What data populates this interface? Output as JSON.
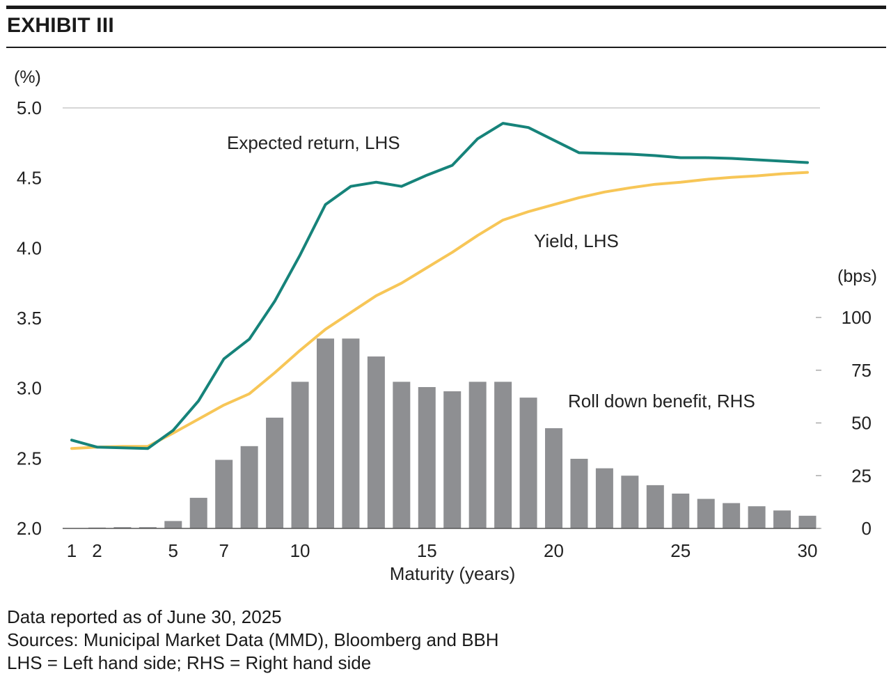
{
  "header": {
    "title": "EXHIBIT III"
  },
  "footnotes": [
    "Data reported as of June 30, 2025",
    "Sources: Municipal Market Data (MMD), Bloomberg and BBH",
    "LHS = Left hand side; RHS = Right hand side"
  ],
  "chart_data": {
    "type": "bar+line",
    "xlabel": "Maturity (years)",
    "x_ticks": [
      1,
      2,
      5,
      7,
      10,
      15,
      20,
      25,
      30
    ],
    "x_range": [
      1,
      30
    ],
    "left_axis": {
      "unit_label": "(%)",
      "range": [
        2.0,
        5.0
      ],
      "ticks": [
        "2.0",
        "2.5",
        "3.0",
        "3.5",
        "4.0",
        "4.5",
        "5.0"
      ]
    },
    "right_axis": {
      "unit_label": "(bps)",
      "range": [
        0,
        133
      ],
      "ticks": [
        "0",
        "25",
        "50",
        "75",
        "100"
      ]
    },
    "grid": "top line at 5.0 only",
    "colors": {
      "expected_return": "#16837a",
      "yield": "#f7c657",
      "roll_down": "#8e8f92",
      "axis": "#555555"
    },
    "x": [
      1,
      2,
      3,
      4,
      5,
      6,
      7,
      8,
      9,
      10,
      11,
      12,
      13,
      14,
      15,
      16,
      17,
      18,
      19,
      20,
      21,
      22,
      23,
      24,
      25,
      26,
      27,
      28,
      29,
      30
    ],
    "series": [
      {
        "name": "Expected return, LHS",
        "axis": "left",
        "kind": "line",
        "values": [
          2.63,
          2.58,
          2.575,
          2.57,
          2.7,
          2.91,
          3.21,
          3.35,
          3.62,
          3.95,
          4.31,
          4.44,
          4.47,
          4.44,
          4.52,
          4.59,
          4.78,
          4.89,
          4.86,
          4.77,
          4.68,
          4.675,
          4.67,
          4.66,
          4.645,
          4.645,
          4.64,
          4.63,
          4.62,
          4.61
        ]
      },
      {
        "name": "Yield, LHS",
        "axis": "left",
        "kind": "line",
        "values": [
          2.57,
          2.58,
          2.585,
          2.585,
          2.68,
          2.78,
          2.88,
          2.96,
          3.11,
          3.27,
          3.42,
          3.54,
          3.66,
          3.75,
          3.86,
          3.97,
          4.09,
          4.2,
          4.26,
          4.31,
          4.36,
          4.4,
          4.43,
          4.455,
          4.47,
          4.49,
          4.505,
          4.515,
          4.53,
          4.54
        ]
      },
      {
        "name": "Roll down benefit, RHS",
        "axis": "right",
        "kind": "bar",
        "values": [
          0,
          0.4,
          0.6,
          0.6,
          3.5,
          14.5,
          32.5,
          39,
          52.5,
          69.5,
          90,
          90,
          81.5,
          69.5,
          67,
          65,
          69.5,
          69.5,
          62,
          47.5,
          33,
          28.5,
          25,
          20.5,
          16.5,
          14,
          12,
          10.5,
          8.5,
          6
        ]
      }
    ]
  }
}
